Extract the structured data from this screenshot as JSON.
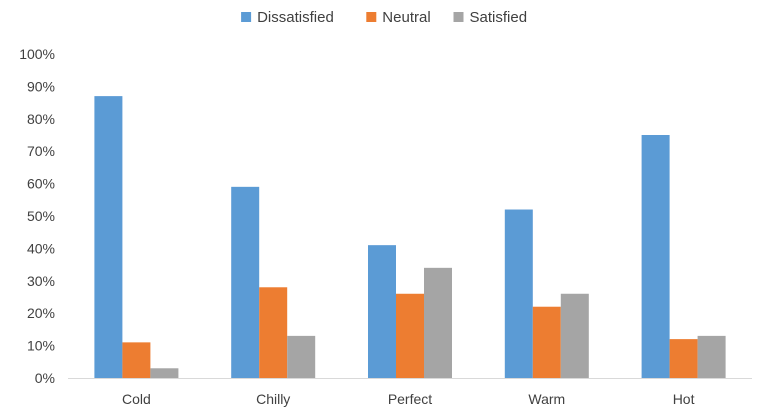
{
  "chart_data": {
    "type": "bar",
    "title": "",
    "xlabel": "",
    "ylabel": "",
    "categories": [
      "Cold",
      "Chilly",
      "Perfect",
      "Warm",
      "Hot"
    ],
    "series": [
      {
        "name": "Dissatisfied",
        "color": "#5B9BD5",
        "values": [
          87,
          59,
          41,
          52,
          75
        ]
      },
      {
        "name": "Neutral",
        "color": "#ED7D31",
        "values": [
          11,
          28,
          26,
          22,
          12
        ]
      },
      {
        "name": "Satisfied",
        "color": "#A5A5A5",
        "values": [
          3,
          13,
          34,
          26,
          13
        ]
      }
    ],
    "ylim": [
      0,
      100
    ],
    "y_ticks": [
      "0%",
      "10%",
      "20%",
      "30%",
      "40%",
      "50%",
      "60%",
      "70%",
      "80%",
      "90%",
      "100%"
    ],
    "value_format": "percent",
    "grid": false,
    "legend_position": "top"
  }
}
